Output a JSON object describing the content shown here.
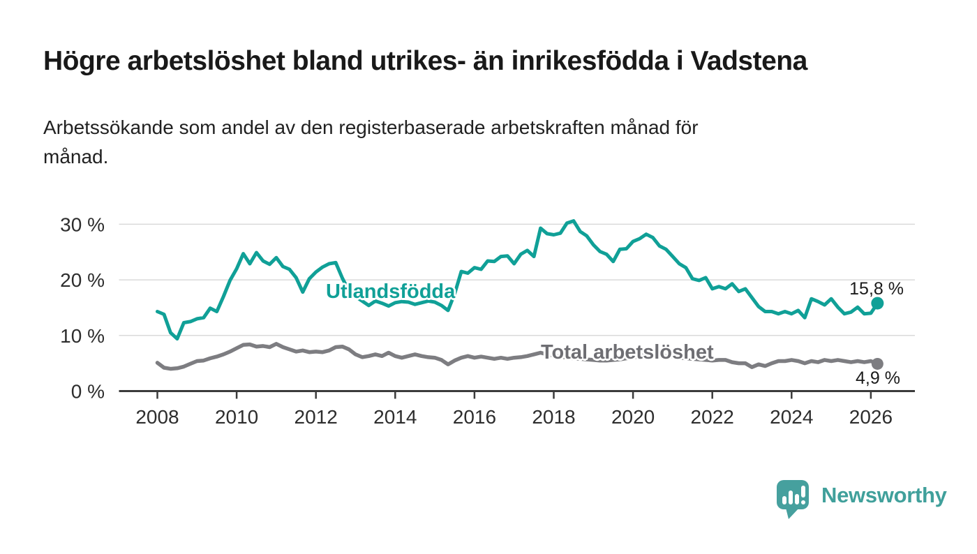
{
  "chart_data": {
    "type": "line",
    "title": "Högre arbetslöshet bland utrikes- än inrikesfödda i Vadstena",
    "subtitle_lines": [
      "Arbetssökande som andel av den registerbaserade arbetskraften månad för",
      "månad."
    ],
    "x_start_year": 2008.0,
    "x_step_years": 0.1666667,
    "x_tick_years": [
      2008,
      2010,
      2012,
      2014,
      2016,
      2018,
      2020,
      2022,
      2024,
      2026
    ],
    "x_tick_labels": [
      "2008",
      "2010",
      "2012",
      "2014",
      "2016",
      "2018",
      "2020",
      "2022",
      "2024",
      "2026"
    ],
    "y_ticks": [
      {
        "value": 0,
        "label": "0 %"
      },
      {
        "value": 10,
        "label": "10 %"
      },
      {
        "value": 20,
        "label": "20 %"
      },
      {
        "value": 30,
        "label": "30 %"
      }
    ],
    "ylim": [
      0,
      33.5
    ],
    "grid": "horizontal",
    "legend_position": "inline-series-labels",
    "unit": "%",
    "series": [
      {
        "name": "Utlandsfödda",
        "color": "#10a097",
        "label_color": "#10a097",
        "end_value": 15.8,
        "end_value_label": "15,8 %",
        "values": [
          14.3,
          13.8,
          10.5,
          9.4,
          12.3,
          12.5,
          13.0,
          13.2,
          14.9,
          14.3,
          17.0,
          19.9,
          22.0,
          24.7,
          22.9,
          24.9,
          23.4,
          22.8,
          24.0,
          22.4,
          21.9,
          20.4,
          17.8,
          20.2,
          21.4,
          22.3,
          22.9,
          23.1,
          20.3,
          18.0,
          17.0,
          16.2,
          15.4,
          16.2,
          15.8,
          15.3,
          15.9,
          16.1,
          16.0,
          15.6,
          15.9,
          16.2,
          16.0,
          15.4,
          14.5,
          17.5,
          21.5,
          21.2,
          22.2,
          21.9,
          23.4,
          23.3,
          24.2,
          24.3,
          22.9,
          24.6,
          25.3,
          24.2,
          29.3,
          28.3,
          28.1,
          28.4,
          30.2,
          30.6,
          28.7,
          27.9,
          26.3,
          25.1,
          24.6,
          23.3,
          25.5,
          25.6,
          26.9,
          27.4,
          28.2,
          27.6,
          26.1,
          25.5,
          24.2,
          22.9,
          22.2,
          20.2,
          19.9,
          20.4,
          18.4,
          18.8,
          18.4,
          19.3,
          17.9,
          18.4,
          16.8,
          15.2,
          14.3,
          14.3,
          13.9,
          14.3,
          13.9,
          14.5,
          13.2,
          16.6,
          16.1,
          15.5,
          16.6,
          15.1,
          13.9,
          14.2,
          15.1,
          13.9,
          14.0,
          15.8
        ]
      },
      {
        "name": "Total arbetslöshet",
        "color": "#7d7d81",
        "label_color": "#6e6e73",
        "end_value": 4.9,
        "end_value_label": "4,9 %",
        "values": [
          5.1,
          4.2,
          4.0,
          4.1,
          4.4,
          4.9,
          5.4,
          5.5,
          5.9,
          6.2,
          6.6,
          7.1,
          7.7,
          8.3,
          8.4,
          8.0,
          8.1,
          7.9,
          8.5,
          7.9,
          7.5,
          7.1,
          7.3,
          7.0,
          7.1,
          7.0,
          7.3,
          7.9,
          8.0,
          7.5,
          6.6,
          6.1,
          6.3,
          6.6,
          6.3,
          6.9,
          6.3,
          6.0,
          6.3,
          6.6,
          6.3,
          6.1,
          6.0,
          5.6,
          4.8,
          5.5,
          6.0,
          6.3,
          6.0,
          6.2,
          6.0,
          5.8,
          6.0,
          5.8,
          6.0,
          6.1,
          6.3,
          6.6,
          6.9,
          6.6,
          6.4,
          6.2,
          6.0,
          5.9,
          5.8,
          5.7,
          5.6,
          5.5,
          5.5,
          5.6,
          5.7,
          5.9,
          6.0,
          6.3,
          6.6,
          6.5,
          6.4,
          6.3,
          6.2,
          6.0,
          5.9,
          5.8,
          5.7,
          5.6,
          5.5,
          5.6,
          5.6,
          5.2,
          5.0,
          5.0,
          4.3,
          4.8,
          4.5,
          5.0,
          5.4,
          5.4,
          5.6,
          5.4,
          5.0,
          5.4,
          5.2,
          5.6,
          5.4,
          5.6,
          5.4,
          5.2,
          5.4,
          5.2,
          5.4,
          4.9
        ]
      }
    ]
  },
  "branding": {
    "logo_text": "Newsworthy",
    "logo_icon": "speech-bubble-bar-chart-icon",
    "logo_color": "#46a09e"
  }
}
